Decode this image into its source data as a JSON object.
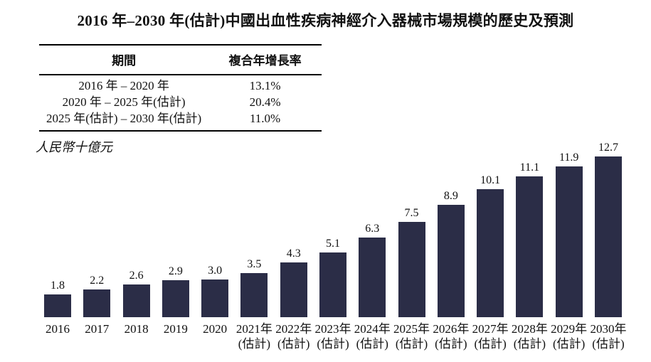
{
  "title": "2016 年–2030 年(估計)中國出血性疾病神經介入器械市場規模的歷史及預測",
  "units_label": "人民幣十億元",
  "table": {
    "headers": [
      "期間",
      "複合年增長率"
    ],
    "rows": [
      {
        "period": "2016 年 – 2020 年",
        "cagr": "13.1%"
      },
      {
        "period": "2020 年 – 2025 年(估計)",
        "cagr": "20.4%"
      },
      {
        "period": "2025 年(估計) – 2030 年(估計)",
        "cagr": "11.0%"
      }
    ]
  },
  "chart_data": {
    "type": "bar",
    "title": "2016 年–2030 年(估計)中國出血性疾病神經介入器械市場規模的歷史及預測",
    "ylabel": "人民幣十億元",
    "xlabel": "",
    "categories": [
      "2016",
      "2017",
      "2018",
      "2019",
      "2020",
      "2021年(估計)",
      "2022年(估計)",
      "2023年(估計)",
      "2024年(估計)",
      "2025年(估計)",
      "2026年(估計)",
      "2027年(估計)",
      "2028年(估計)",
      "2029年(估計)",
      "2030年(估計)"
    ],
    "values": [
      1.8,
      2.2,
      2.6,
      2.9,
      3.0,
      3.5,
      4.3,
      5.1,
      6.3,
      7.5,
      8.9,
      10.1,
      11.1,
      11.9,
      12.7
    ],
    "ylim": [
      0,
      13
    ],
    "grid": false,
    "legend": "none",
    "data_labels": true,
    "bar_color": "#2b2d47",
    "text_color": "#111111"
  }
}
